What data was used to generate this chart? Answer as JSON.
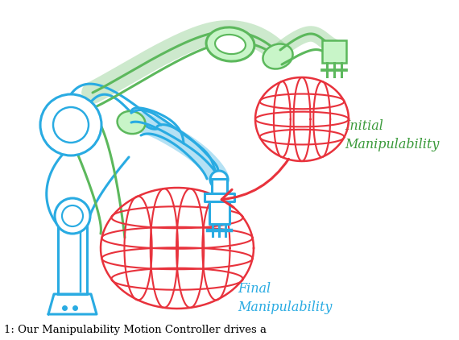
{
  "background_color": "#ffffff",
  "cyan": "#29ABE2",
  "green": "#5CB85C",
  "green_fill": "#C8F5C8",
  "red": "#E8323C",
  "text_green": "#3A9A3A",
  "text_cyan": "#29ABE2",
  "label_initial": "Initial\nManipulability",
  "label_final": "Final\nManipulability",
  "caption": "1: Our Manipulability Motion Controller drives a",
  "figsize": [
    5.7,
    4.22
  ],
  "dpi": 100
}
